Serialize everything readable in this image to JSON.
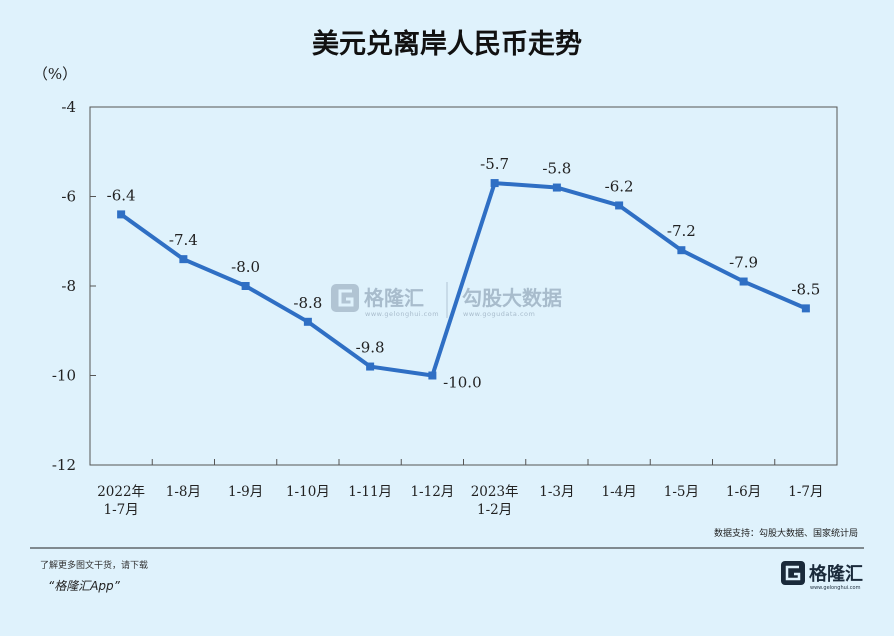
{
  "chart_data": {
    "type": "line",
    "title": "美元兑离岸人民币走势",
    "ylabel": "（%）",
    "ylim": [
      -12,
      -4
    ],
    "yticks": [
      -4,
      -6,
      -8,
      -10,
      -12
    ],
    "categories": [
      [
        "2022年",
        "1-7月"
      ],
      [
        "1-8月"
      ],
      [
        "1-9月"
      ],
      [
        "1-10月"
      ],
      [
        "1-11月"
      ],
      [
        "1-12月"
      ],
      [
        "2023年",
        "1-2月"
      ],
      [
        "1-3月"
      ],
      [
        "1-4月"
      ],
      [
        "1-5月"
      ],
      [
        "1-6月"
      ],
      [
        "1-7月"
      ]
    ],
    "series": [
      {
        "values": [
          -6.4,
          -7.4,
          -8.0,
          -8.8,
          -9.8,
          -10.0,
          -5.7,
          -5.8,
          -6.2,
          -7.2,
          -7.9,
          -8.5
        ],
        "labels": [
          "-6.4",
          "-7.4",
          "-8.0",
          "-8.8",
          "-9.8",
          "-10.0",
          "-5.7",
          "-5.8",
          "-6.2",
          "-7.2",
          "-7.9",
          "-8.5"
        ],
        "color": "#2f6fc4"
      }
    ],
    "grid": false,
    "legend": "none"
  },
  "source": "数据支持：勾股大数据、国家统计局",
  "watermark": {
    "brand1": "格隆汇",
    "brand1_url": "www.gelonghui.com",
    "brand2": "勾股大数据",
    "brand2_url": "www.gogudata.com"
  },
  "footer": {
    "line1": "了解更多图文干货，请下载",
    "line2": "“格隆汇App”",
    "logo_text": "格隆汇",
    "logo_url": "www.gelonghui.com"
  },
  "colors": {
    "background": "#dff2fc",
    "line": "#2f6fc4",
    "axis": "#555555"
  }
}
